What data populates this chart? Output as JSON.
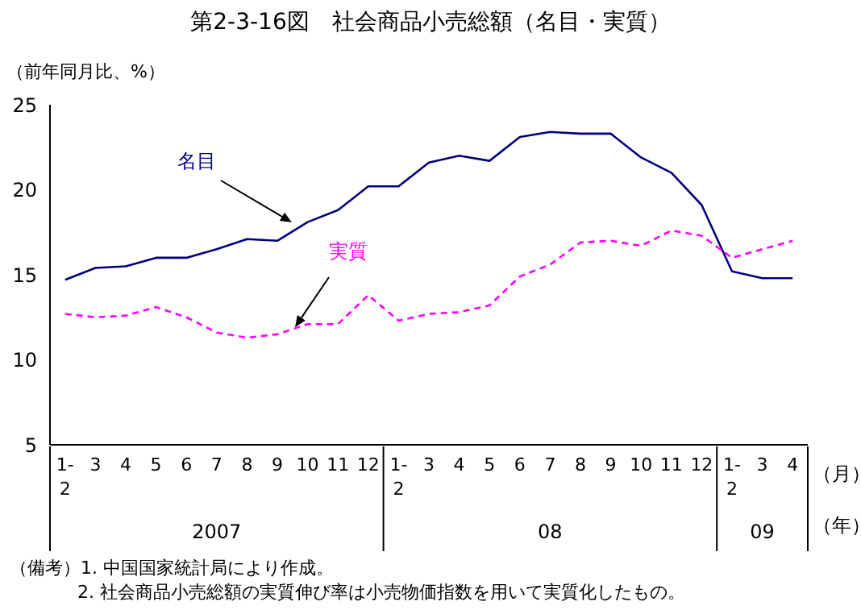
{
  "chart_data": {
    "type": "line",
    "title": "第2-3-16図　社会商品小売総額（名目・実質）",
    "ylabel": "（前年同月比、%）",
    "categories": [
      "1-2",
      "3",
      "4",
      "5",
      "6",
      "7",
      "8",
      "9",
      "10",
      "11",
      "12",
      "1-2",
      "3",
      "4",
      "5",
      "6",
      "7",
      "8",
      "9",
      "10",
      "11",
      "12",
      "1-2",
      "3",
      "4"
    ],
    "series": [
      {
        "name": "名目",
        "color": "#000080",
        "line_style": "solid",
        "values": [
          14.7,
          15.4,
          15.5,
          16.0,
          16.0,
          16.5,
          17.1,
          17.0,
          18.1,
          18.8,
          20.2,
          20.2,
          21.6,
          22.0,
          21.7,
          23.1,
          23.4,
          23.3,
          23.3,
          21.9,
          21.0,
          19.1,
          15.2,
          14.8,
          14.8
        ]
      },
      {
        "name": "実質",
        "color": "#ff00ff",
        "line_style": "dashed",
        "values": [
          12.7,
          12.5,
          12.6,
          13.1,
          12.5,
          11.6,
          11.3,
          11.5,
          12.1,
          12.1,
          13.8,
          12.3,
          12.7,
          12.8,
          13.2,
          14.9,
          15.6,
          16.9,
          17.0,
          16.7,
          17.6,
          17.3,
          16.0,
          16.5,
          17.0
        ]
      }
    ],
    "ylim": [
      5,
      25
    ],
    "yticks": [
      5,
      10,
      15,
      20,
      25
    ],
    "grid": false,
    "marker": "none",
    "annotations": [
      "（月）",
      "（年）",
      "2007",
      "08",
      "09",
      "（備考）1. 中国国家統計局により作成。",
      "2. 社会商品小売総額の実質伸び率は小売物価指数を用いて実質化したもの。"
    ]
  }
}
